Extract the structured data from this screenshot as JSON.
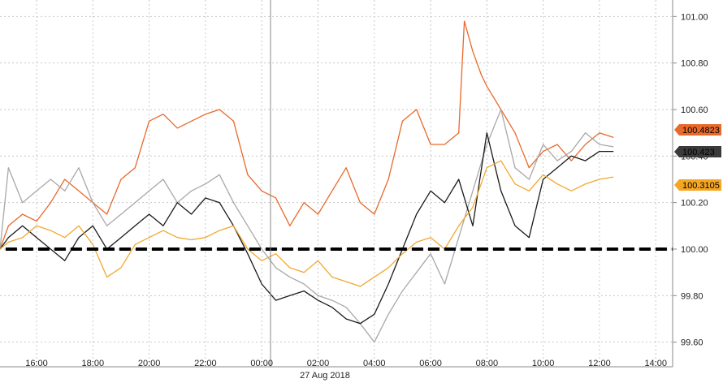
{
  "chart_data": {
    "type": "line",
    "title": "",
    "xlabel": "",
    "ylabel": "",
    "date_label": "27 Aug 2018",
    "x_ticks": [
      "16:00",
      "18:00",
      "20:00",
      "22:00",
      "00:00",
      "02:00",
      "04:00",
      "06:00",
      "08:00",
      "10:00",
      "12:00",
      "14:00"
    ],
    "x_range_hours": [
      14.7,
      38.6
    ],
    "y_ticks": [
      "99.60",
      "99.80",
      "100.00",
      "100.20",
      "100.40",
      "100.60",
      "100.80",
      "101.00"
    ],
    "ylim": [
      99.55,
      101.05
    ],
    "grid": true,
    "reference_line": 100.0,
    "series": [
      {
        "color": "#e8692a",
        "last_label": "100.4823",
        "hours": [
          14.7,
          15.0,
          15.5,
          16.0,
          16.5,
          17.0,
          17.5,
          18.0,
          18.5,
          19.0,
          19.5,
          20.0,
          20.5,
          21.0,
          21.5,
          22.0,
          22.5,
          23.0,
          23.5,
          24.0,
          24.5,
          25.0,
          25.5,
          26.0,
          26.5,
          27.0,
          27.5,
          28.0,
          28.5,
          29.0,
          29.5,
          30.0,
          30.5,
          31.0,
          31.2,
          31.5,
          31.8,
          32.0,
          32.5,
          33.0,
          33.5,
          34.0,
          34.5,
          35.0,
          35.5,
          36.0,
          36.5
        ],
        "values": [
          100.0,
          100.1,
          100.15,
          100.12,
          100.2,
          100.3,
          100.25,
          100.2,
          100.15,
          100.3,
          100.35,
          100.55,
          100.58,
          100.52,
          100.55,
          100.58,
          100.6,
          100.55,
          100.32,
          100.25,
          100.22,
          100.1,
          100.2,
          100.15,
          100.25,
          100.35,
          100.2,
          100.15,
          100.3,
          100.55,
          100.6,
          100.45,
          100.45,
          100.5,
          100.98,
          100.85,
          100.75,
          100.7,
          100.6,
          100.5,
          100.35,
          100.42,
          100.45,
          100.38,
          100.45,
          100.5,
          100.48
        ]
      },
      {
        "color": "#a8a8a8",
        "last_label": "100.44",
        "hours": [
          14.7,
          15.0,
          15.5,
          16.0,
          16.5,
          17.0,
          17.5,
          18.0,
          18.5,
          19.0,
          19.5,
          20.0,
          20.5,
          21.0,
          21.5,
          22.0,
          22.5,
          23.0,
          23.5,
          24.0,
          24.5,
          25.0,
          25.5,
          26.0,
          26.5,
          27.0,
          27.5,
          28.0,
          28.5,
          29.0,
          29.5,
          30.0,
          30.5,
          31.0,
          31.5,
          32.0,
          32.5,
          33.0,
          33.5,
          34.0,
          34.5,
          35.0,
          35.5,
          36.0,
          36.5
        ],
        "values": [
          100.0,
          100.35,
          100.2,
          100.25,
          100.3,
          100.25,
          100.35,
          100.2,
          100.1,
          100.15,
          100.2,
          100.25,
          100.3,
          100.2,
          100.25,
          100.28,
          100.32,
          100.2,
          100.1,
          100.0,
          99.92,
          99.88,
          99.85,
          99.8,
          99.78,
          99.75,
          99.68,
          99.6,
          99.72,
          99.82,
          99.9,
          99.98,
          99.85,
          100.05,
          100.25,
          100.45,
          100.6,
          100.35,
          100.3,
          100.45,
          100.38,
          100.42,
          100.5,
          100.45,
          100.44
        ]
      },
      {
        "color": "#1a1a1a",
        "last_label": "100.423",
        "hours": [
          14.7,
          15.0,
          15.5,
          16.0,
          16.5,
          17.0,
          17.5,
          18.0,
          18.5,
          19.0,
          19.5,
          20.0,
          20.5,
          21.0,
          21.5,
          22.0,
          22.5,
          23.0,
          23.5,
          24.0,
          24.5,
          25.0,
          25.5,
          26.0,
          26.5,
          27.0,
          27.5,
          28.0,
          28.5,
          29.0,
          29.5,
          30.0,
          30.5,
          31.0,
          31.5,
          32.0,
          32.5,
          33.0,
          33.5,
          34.0,
          34.5,
          35.0,
          35.5,
          36.0,
          36.5
        ],
        "values": [
          100.0,
          100.05,
          100.1,
          100.05,
          100.0,
          99.95,
          100.05,
          100.1,
          100.0,
          100.05,
          100.1,
          100.15,
          100.1,
          100.2,
          100.15,
          100.22,
          100.2,
          100.1,
          99.98,
          99.85,
          99.78,
          99.8,
          99.82,
          99.78,
          99.75,
          99.7,
          99.68,
          99.72,
          99.85,
          100.0,
          100.15,
          100.25,
          100.2,
          100.3,
          100.1,
          100.5,
          100.25,
          100.1,
          100.05,
          100.3,
          100.35,
          100.4,
          100.38,
          100.42,
          100.42
        ]
      },
      {
        "color": "#f0a82e",
        "last_label": "100.3105",
        "hours": [
          14.7,
          15.0,
          15.5,
          16.0,
          16.5,
          17.0,
          17.5,
          18.0,
          18.5,
          19.0,
          19.5,
          20.0,
          20.5,
          21.0,
          21.5,
          22.0,
          22.5,
          23.0,
          23.5,
          24.0,
          24.5,
          25.0,
          25.5,
          26.0,
          26.5,
          27.0,
          27.5,
          28.0,
          28.5,
          29.0,
          29.5,
          30.0,
          30.5,
          31.0,
          31.5,
          32.0,
          32.5,
          33.0,
          33.5,
          34.0,
          34.5,
          35.0,
          35.5,
          36.0,
          36.5
        ],
        "values": [
          100.0,
          100.03,
          100.05,
          100.1,
          100.08,
          100.05,
          100.1,
          100.02,
          99.88,
          99.92,
          100.02,
          100.05,
          100.08,
          100.05,
          100.04,
          100.05,
          100.08,
          100.1,
          100.0,
          99.95,
          99.98,
          99.92,
          99.9,
          99.95,
          99.88,
          99.86,
          99.84,
          99.88,
          99.92,
          99.98,
          100.03,
          100.05,
          100.0,
          100.1,
          100.18,
          100.35,
          100.38,
          100.28,
          100.25,
          100.32,
          100.28,
          100.25,
          100.28,
          100.3,
          100.31
        ]
      }
    ]
  },
  "tags": {
    "orange": "100.4823",
    "dark": "100.423",
    "gold": "100.3105"
  },
  "colors": {
    "orange": "#e8692a",
    "gray": "#a8a8a8",
    "dark": "#1a1a1a",
    "gold": "#f0a82e",
    "dashed_ref": "#000000",
    "grid": "#c8c8c8",
    "tag_orange": "#e8692a",
    "tag_dark": "#3a3a3a",
    "tag_gold": "#f5a623"
  }
}
